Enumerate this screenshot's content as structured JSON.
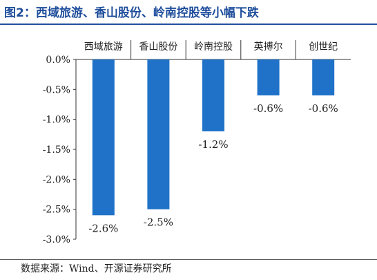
{
  "header": {
    "title": "图2：西域旅游、香山股份、岭南控股等小幅下跌"
  },
  "footer": {
    "source": "数据来源：Wind、开源证券研究所"
  },
  "colors": {
    "bar": "#1f72c8",
    "accent": "#1f4e9c"
  },
  "chart_data": {
    "type": "bar",
    "title": "",
    "xlabel": "",
    "ylabel": "",
    "categories": [
      "西域旅游",
      "香山股份",
      "岭南控股",
      "英搏尔",
      "创世纪"
    ],
    "values": [
      -2.6,
      -2.5,
      -1.2,
      -0.6,
      -0.6
    ],
    "data_labels": [
      "-2.6%",
      "-2.5%",
      "-1.2%",
      "-0.6%",
      "-0.6%"
    ],
    "ylim": [
      -3.0,
      0.0
    ],
    "yticks": [
      0.0,
      -0.5,
      -1.0,
      -1.5,
      -2.0,
      -2.5,
      -3.0
    ],
    "ytick_labels": [
      "0.0%",
      "-0.5%",
      "-1.0%",
      "-1.5%",
      "-2.0%",
      "-2.5%",
      "-3.0%"
    ],
    "x_axis_position": "top",
    "grid": false,
    "legend": "none"
  }
}
